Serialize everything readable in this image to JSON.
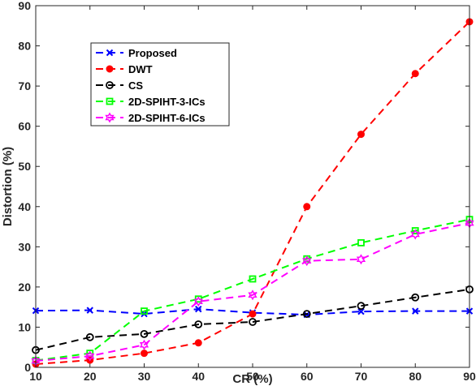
{
  "chart_data": {
    "type": "line",
    "xlabel": "CR (%)",
    "ylabel": "Distortion (%)",
    "xlim": [
      10,
      90
    ],
    "ylim": [
      0,
      90
    ],
    "xticks": [
      10,
      20,
      30,
      40,
      50,
      60,
      70,
      80,
      90
    ],
    "yticks": [
      0,
      10,
      20,
      30,
      40,
      50,
      60,
      70,
      80,
      90
    ],
    "grid": false,
    "legend_position": "top-left",
    "series": [
      {
        "name": "Proposed",
        "color": "#0000ff",
        "marker": "x",
        "x": [
          10,
          20,
          30,
          40,
          50,
          60,
          70,
          80,
          90
        ],
        "y": [
          14.1,
          14.2,
          13.3,
          14.5,
          13.6,
          13.1,
          13.9,
          14.0,
          14.0
        ]
      },
      {
        "name": "DWT",
        "color": "#ff0000",
        "marker": "filled-circle",
        "x": [
          10,
          20,
          30,
          40,
          50,
          60,
          70,
          80,
          90
        ],
        "y": [
          0.8,
          1.8,
          3.5,
          6.1,
          13.3,
          40.0,
          58.0,
          73.1,
          86.0
        ]
      },
      {
        "name": "CS",
        "color": "#000000",
        "marker": "open-circle",
        "x": [
          10,
          20,
          30,
          40,
          50,
          60,
          70,
          80,
          90
        ],
        "y": [
          4.3,
          7.5,
          8.3,
          10.7,
          11.3,
          13.3,
          15.3,
          17.4,
          19.4
        ]
      },
      {
        "name": "2D-SPIHT-3-ICs",
        "color": "#00ff00",
        "marker": "open-square",
        "x": [
          10,
          20,
          30,
          40,
          50,
          60,
          70,
          80,
          90
        ],
        "y": [
          1.7,
          3.5,
          14.0,
          17.0,
          22.0,
          27.0,
          31.0,
          34.0,
          36.8
        ]
      },
      {
        "name": "2D-SPIHT-6-ICs",
        "color": "#ff00ff",
        "marker": "open-hexagram",
        "x": [
          10,
          20,
          30,
          40,
          50,
          60,
          70,
          80,
          90
        ],
        "y": [
          1.6,
          2.8,
          5.6,
          16.4,
          18.0,
          26.5,
          26.9,
          33.1,
          35.9
        ]
      }
    ]
  }
}
